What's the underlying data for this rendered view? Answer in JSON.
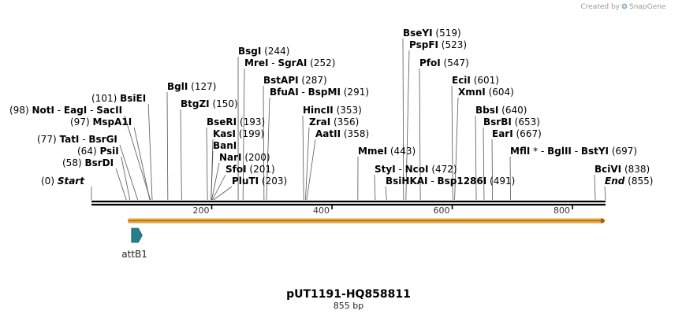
{
  "credit": {
    "prefix": "Created by",
    "brand": "SnapGene"
  },
  "map": {
    "name": "pUT1191-HQ858811",
    "length_label": "855 bp",
    "total_bp": 855,
    "ticks": [
      200,
      400,
      600,
      800
    ]
  },
  "features": [
    {
      "name": "attB1",
      "start": 64,
      "end": 91,
      "color": "#2a7d8c"
    }
  ],
  "orf": {
    "start": 64,
    "end": 855,
    "color": "#f0b445"
  },
  "sites": [
    {
      "parts": [
        [
          "(0)",
          "p"
        ],
        [
          "Start",
          "t"
        ]
      ],
      "bp": 0
    },
    {
      "parts": [
        [
          "(58)",
          "p"
        ],
        [
          "BsrDI",
          "e"
        ]
      ],
      "bp": 58
    },
    {
      "parts": [
        [
          "(64)",
          "p"
        ],
        [
          "PsiI",
          "e"
        ]
      ],
      "bp": 64
    },
    {
      "parts": [
        [
          "(77)",
          "p"
        ],
        [
          "TatI",
          "e"
        ],
        [
          " - ",
          "s"
        ],
        [
          "BsrGI",
          "e"
        ]
      ],
      "bp": 77
    },
    {
      "parts": [
        [
          "(97)",
          "p"
        ],
        [
          "MspA1I",
          "e"
        ]
      ],
      "bp": 97
    },
    {
      "parts": [
        [
          "(98)",
          "p"
        ],
        [
          "NotI",
          "e"
        ],
        [
          " - ",
          "s"
        ],
        [
          "EagI",
          "e"
        ],
        [
          " - ",
          "s"
        ],
        [
          "SacII",
          "e"
        ]
      ],
      "bp": 98
    },
    {
      "parts": [
        [
          "(101)",
          "p"
        ],
        [
          "BsiEI",
          "e"
        ]
      ],
      "bp": 101
    },
    {
      "parts": [
        [
          "BglI",
          "e"
        ],
        [
          "(127)",
          "p"
        ]
      ],
      "bp": 127
    },
    {
      "parts": [
        [
          "BtgZI",
          "e"
        ],
        [
          "(150)",
          "p"
        ]
      ],
      "bp": 150
    },
    {
      "parts": [
        [
          "BseRI",
          "e"
        ],
        [
          "(193)",
          "p"
        ]
      ],
      "bp": 193
    },
    {
      "parts": [
        [
          "KasI",
          "e"
        ],
        [
          "(199)",
          "p"
        ]
      ],
      "bp": 199
    },
    {
      "parts": [
        [
          "BanI",
          "e"
        ]
      ],
      "bp": 199
    },
    {
      "parts": [
        [
          "NarI",
          "e"
        ],
        [
          "(200)",
          "p"
        ]
      ],
      "bp": 200
    },
    {
      "parts": [
        [
          "SfoI",
          "e"
        ],
        [
          "(201)",
          "p"
        ]
      ],
      "bp": 201
    },
    {
      "parts": [
        [
          "PluTI",
          "e"
        ],
        [
          "(203)",
          "p"
        ]
      ],
      "bp": 203
    },
    {
      "parts": [
        [
          "BsgI",
          "e"
        ],
        [
          "(244)",
          "p"
        ]
      ],
      "bp": 244
    },
    {
      "parts": [
        [
          "MreI",
          "e"
        ],
        [
          " - ",
          "s"
        ],
        [
          "SgrAI",
          "e"
        ],
        [
          "(252)",
          "p"
        ]
      ],
      "bp": 252
    },
    {
      "parts": [
        [
          "BstAPI",
          "e"
        ],
        [
          "(287)",
          "p"
        ]
      ],
      "bp": 287
    },
    {
      "parts": [
        [
          "BfuAI",
          "e"
        ],
        [
          " - ",
          "s"
        ],
        [
          "BspMI",
          "e"
        ],
        [
          "(291)",
          "p"
        ]
      ],
      "bp": 291
    },
    {
      "parts": [
        [
          "HincII",
          "e"
        ],
        [
          "(353)",
          "p"
        ]
      ],
      "bp": 353
    },
    {
      "parts": [
        [
          "ZraI",
          "e"
        ],
        [
          "(356)",
          "p"
        ]
      ],
      "bp": 356
    },
    {
      "parts": [
        [
          "AatII",
          "e"
        ],
        [
          "(358)",
          "p"
        ]
      ],
      "bp": 358
    },
    {
      "parts": [
        [
          "MmeI",
          "e"
        ],
        [
          "(443)",
          "p"
        ]
      ],
      "bp": 443
    },
    {
      "parts": [
        [
          "StyI",
          "e"
        ],
        [
          " - ",
          "s"
        ],
        [
          "NcoI",
          "e"
        ],
        [
          "(472)",
          "p"
        ]
      ],
      "bp": 472
    },
    {
      "parts": [
        [
          "BsiHKAI",
          "e"
        ],
        [
          " - ",
          "s"
        ],
        [
          "Bsp1286I",
          "e"
        ],
        [
          "(491)",
          "p"
        ]
      ],
      "bp": 491
    },
    {
      "parts": [
        [
          "BseYI",
          "e"
        ],
        [
          "(519)",
          "p"
        ]
      ],
      "bp": 519
    },
    {
      "parts": [
        [
          "PspFI",
          "e"
        ],
        [
          "(523)",
          "p"
        ]
      ],
      "bp": 523
    },
    {
      "parts": [
        [
          "PfoI",
          "e"
        ],
        [
          "(547)",
          "p"
        ]
      ],
      "bp": 547
    },
    {
      "parts": [
        [
          "EciI",
          "e"
        ],
        [
          "(601)",
          "p"
        ]
      ],
      "bp": 601
    },
    {
      "parts": [
        [
          "XmnI",
          "e"
        ],
        [
          "(604)",
          "p"
        ]
      ],
      "bp": 604
    },
    {
      "parts": [
        [
          "BbsI",
          "e"
        ],
        [
          "(640)",
          "p"
        ]
      ],
      "bp": 640
    },
    {
      "parts": [
        [
          "BsrBI",
          "e"
        ],
        [
          "(653)",
          "p"
        ]
      ],
      "bp": 653
    },
    {
      "parts": [
        [
          "EarI",
          "e"
        ],
        [
          "(667)",
          "p"
        ]
      ],
      "bp": 667
    },
    {
      "parts": [
        [
          "MflI",
          "e"
        ],
        [
          " * - ",
          "s"
        ],
        [
          "BglII",
          "e"
        ],
        [
          " - ",
          "s"
        ],
        [
          "BstYI",
          "e"
        ],
        [
          "(697)",
          "p"
        ]
      ],
      "bp": 697
    },
    {
      "parts": [
        [
          "BciVI",
          "e"
        ],
        [
          "(838)",
          "p"
        ]
      ],
      "bp": 838
    },
    {
      "parts": [
        [
          "End",
          "t"
        ],
        [
          "(855)",
          "p"
        ]
      ],
      "bp": 855
    }
  ]
}
